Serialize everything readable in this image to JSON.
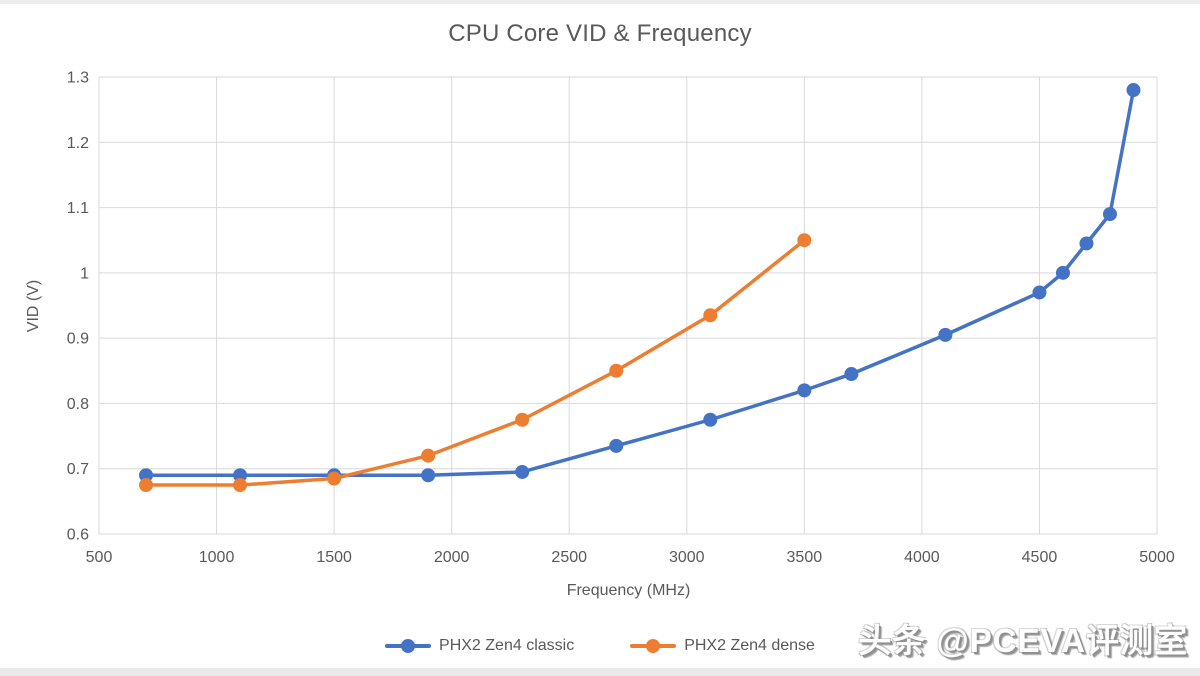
{
  "chart_data": {
    "type": "line",
    "title": "CPU Core VID & Frequency",
    "xlabel": "Frequency (MHz)",
    "ylabel": "VID (V)",
    "xlim": [
      500,
      5000
    ],
    "ylim": [
      0.6,
      1.3
    ],
    "x_ticks": [
      500,
      1000,
      1500,
      2000,
      2500,
      3000,
      3500,
      4000,
      4500,
      5000
    ],
    "y_ticks": [
      0.6,
      0.7,
      0.8,
      0.9,
      1,
      1.1,
      1.2,
      1.3
    ],
    "y_tick_labels": [
      "0.6",
      "0.7",
      "0.8",
      "0.9",
      "1",
      "1.1",
      "1.2",
      "1.3"
    ],
    "grid": true,
    "legend_position": "bottom-center",
    "series": [
      {
        "name": "PHX2 Zen4 classic",
        "color": "#4472C4",
        "x": [
          700,
          1100,
          1500,
          1900,
          2300,
          2700,
          3100,
          3500,
          3700,
          4100,
          4500,
          4600,
          4700,
          4800,
          4900
        ],
        "y": [
          0.69,
          0.69,
          0.69,
          0.69,
          0.695,
          0.735,
          0.775,
          0.82,
          0.845,
          0.905,
          0.97,
          1.0,
          1.045,
          1.09,
          1.28
        ]
      },
      {
        "name": "PHX2 Zen4 dense",
        "color": "#ED7D31",
        "x": [
          700,
          1100,
          1500,
          1900,
          2300,
          2700,
          3100,
          3500
        ],
        "y": [
          0.675,
          0.675,
          0.685,
          0.72,
          0.775,
          0.85,
          0.935,
          1.05
        ]
      }
    ],
    "styles": {
      "grid_color": "#D9D9D9",
      "text_color": "#595959",
      "background": "#FFFFFF",
      "line_width": 3.5,
      "marker_radius": 7
    }
  },
  "watermark": {
    "text": "头条 @PCEVA评测室"
  }
}
